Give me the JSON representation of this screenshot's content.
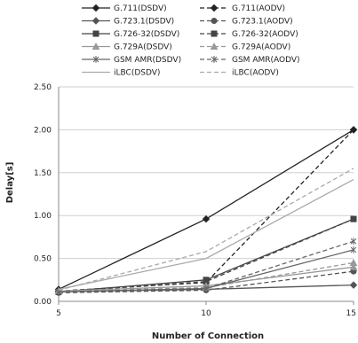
{
  "chart_data": {
    "type": "line",
    "title": "",
    "xlabel": "Number of Connection",
    "ylabel": "Delay[s]",
    "x": [
      5,
      10,
      15
    ],
    "xticks": [
      "5",
      "10",
      "15"
    ],
    "ylim": [
      0,
      2.5
    ],
    "yticks": [
      "0.00",
      "0.50",
      "1.00",
      "1.50",
      "2.00",
      "2.50"
    ],
    "grid": "horizontal",
    "legend_position": "top, two columns",
    "series": [
      {
        "name": "G.711(DSDV)",
        "values": [
          0.14,
          0.96,
          2.0
        ],
        "color": "#222222",
        "dash": "solid",
        "marker": "diamond"
      },
      {
        "name": "G.711(AODV)",
        "values": [
          0.12,
          0.22,
          2.0
        ],
        "color": "#222222",
        "dash": "dashed",
        "marker": "diamond"
      },
      {
        "name": "G.723.1(DSDV)",
        "values": [
          0.11,
          0.14,
          0.19
        ],
        "color": "#555555",
        "dash": "solid",
        "marker": "diamond"
      },
      {
        "name": "G.723.1(AODV)",
        "values": [
          0.1,
          0.13,
          0.35
        ],
        "color": "#555555",
        "dash": "dashed",
        "marker": "circle"
      },
      {
        "name": "G.726-32(DSDV)",
        "values": [
          0.11,
          0.25,
          0.96
        ],
        "color": "#444444",
        "dash": "solid",
        "marker": "square"
      },
      {
        "name": "G.726-32(AODV)",
        "values": [
          0.11,
          0.23,
          0.96
        ],
        "color": "#444444",
        "dash": "dashed",
        "marker": "square"
      },
      {
        "name": "G.729A(DSDV)",
        "values": [
          0.12,
          0.18,
          0.4
        ],
        "color": "#999999",
        "dash": "solid",
        "marker": "triangle"
      },
      {
        "name": "G.729A(AODV)",
        "values": [
          0.12,
          0.16,
          0.45
        ],
        "color": "#999999",
        "dash": "dashed",
        "marker": "triangle"
      },
      {
        "name": "GSM AMR(DSDV)",
        "values": [
          0.11,
          0.15,
          0.6
        ],
        "color": "#666666",
        "dash": "solid",
        "marker": "star"
      },
      {
        "name": "GSM AMR(AODV)",
        "values": [
          0.11,
          0.15,
          0.7
        ],
        "color": "#666666",
        "dash": "dashed",
        "marker": "star"
      },
      {
        "name": "iLBC(DSDV)",
        "values": [
          0.14,
          0.5,
          1.42
        ],
        "color": "#aaaaaa",
        "dash": "solid",
        "marker": "none"
      },
      {
        "name": "iLBC(AODV)",
        "values": [
          0.13,
          0.58,
          1.55
        ],
        "color": "#aaaaaa",
        "dash": "dashed",
        "marker": "none"
      }
    ]
  }
}
